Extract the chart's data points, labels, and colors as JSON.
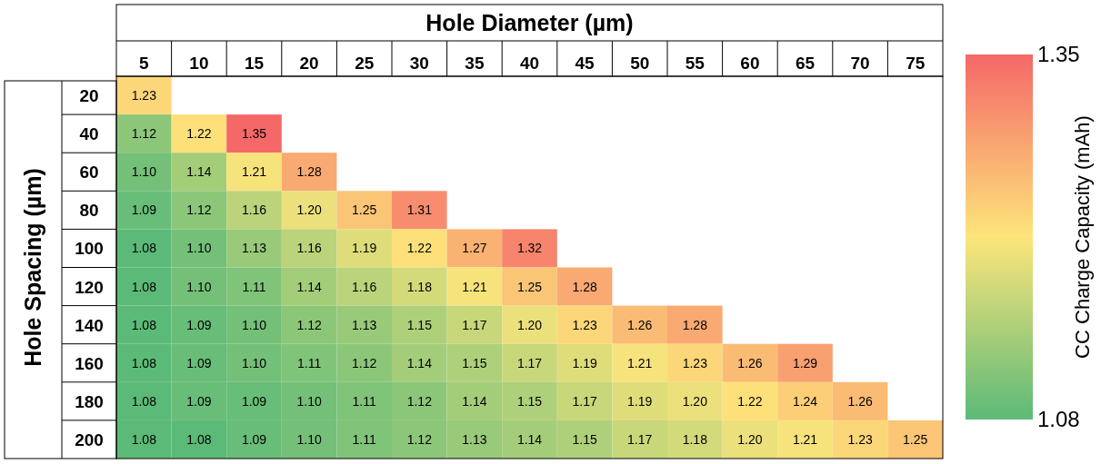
{
  "chart_data": {
    "type": "heatmap",
    "xlabel": "Hole Diameter (µm)",
    "ylabel": "Hole Spacing (µm)",
    "clabel": "CC Charge Capacity (mAh)",
    "categories": [
      "5",
      "10",
      "15",
      "20",
      "25",
      "30",
      "35",
      "40",
      "45",
      "50",
      "55",
      "60",
      "65",
      "70",
      "75"
    ],
    "y_categories": [
      "20",
      "40",
      "60",
      "80",
      "100",
      "120",
      "140",
      "160",
      "180",
      "200"
    ],
    "cells": [
      [
        1.23,
        null,
        null,
        null,
        null,
        null,
        null,
        null,
        null,
        null,
        null,
        null,
        null,
        null,
        null
      ],
      [
        1.12,
        1.22,
        1.35,
        null,
        null,
        null,
        null,
        null,
        null,
        null,
        null,
        null,
        null,
        null,
        null
      ],
      [
        1.1,
        1.14,
        1.21,
        1.28,
        null,
        null,
        null,
        null,
        null,
        null,
        null,
        null,
        null,
        null,
        null
      ],
      [
        1.09,
        1.12,
        1.16,
        1.2,
        1.25,
        1.31,
        null,
        null,
        null,
        null,
        null,
        null,
        null,
        null,
        null
      ],
      [
        1.08,
        1.1,
        1.13,
        1.16,
        1.19,
        1.22,
        1.27,
        1.32,
        null,
        null,
        null,
        null,
        null,
        null,
        null
      ],
      [
        1.08,
        1.1,
        1.11,
        1.14,
        1.16,
        1.18,
        1.21,
        1.25,
        1.28,
        null,
        null,
        null,
        null,
        null,
        null
      ],
      [
        1.08,
        1.09,
        1.1,
        1.12,
        1.13,
        1.15,
        1.17,
        1.2,
        1.23,
        1.26,
        1.28,
        null,
        null,
        null,
        null
      ],
      [
        1.08,
        1.09,
        1.1,
        1.11,
        1.12,
        1.14,
        1.15,
        1.17,
        1.19,
        1.21,
        1.23,
        1.26,
        1.29,
        null,
        null
      ],
      [
        1.08,
        1.09,
        1.09,
        1.1,
        1.11,
        1.12,
        1.14,
        1.15,
        1.17,
        1.19,
        1.2,
        1.22,
        1.24,
        1.26,
        null
      ],
      [
        1.08,
        1.08,
        1.09,
        1.1,
        1.11,
        1.12,
        1.13,
        1.14,
        1.15,
        1.17,
        1.18,
        1.2,
        1.21,
        1.23,
        1.25
      ]
    ],
    "cell_labels": [
      [
        "1.23",
        null,
        null,
        null,
        null,
        null,
        null,
        null,
        null,
        null,
        null,
        null,
        null,
        null,
        null
      ],
      [
        "1.12",
        "1.22",
        "1.35",
        null,
        null,
        null,
        null,
        null,
        null,
        null,
        null,
        null,
        null,
        null,
        null
      ],
      [
        "1.10",
        "1.14",
        "1.21",
        "1.28",
        null,
        null,
        null,
        null,
        null,
        null,
        null,
        null,
        null,
        null,
        null
      ],
      [
        "1.09",
        "1.12",
        "1.16",
        "1.20",
        "1.25",
        "1.31",
        null,
        null,
        null,
        null,
        null,
        null,
        null,
        null,
        null
      ],
      [
        "1.08",
        "1.10",
        "1.13",
        "1.16",
        "1.19",
        "1.22",
        "1.27",
        "1.32",
        null,
        null,
        null,
        null,
        null,
        null,
        null
      ],
      [
        "1.08",
        "1.10",
        "1.11",
        "1.14",
        "1.16",
        "1.18",
        "1.21",
        "1.25",
        "1.28",
        null,
        null,
        null,
        null,
        null,
        null
      ],
      [
        "1.08",
        "1.09",
        "1.10",
        "1.12",
        "1.13",
        "1.15",
        "1.17",
        "1.20",
        "1.23",
        "1.26",
        "1.28",
        null,
        null,
        null,
        null
      ],
      [
        "1.08",
        "1.09",
        "1.10",
        "1.11",
        "1.12",
        "1.14",
        "1.15",
        "1.17",
        "1.19",
        "1.21",
        "1.23",
        "1.26",
        "1.29",
        null,
        null
      ],
      [
        "1.08",
        "1.09",
        "1.09",
        "1.10",
        "1.11",
        "1.12",
        "1.14",
        "1.15",
        "1.17",
        "1.19",
        "1.20",
        "1.22",
        "1.24",
        "1.26",
        null
      ],
      [
        "1.08",
        "1.08",
        "1.09",
        "1.10",
        "1.11",
        "1.12",
        "1.13",
        "1.14",
        "1.15",
        "1.17",
        "1.18",
        "1.20",
        "1.21",
        "1.23",
        "1.25"
      ]
    ],
    "colors": [
      "#5cba78",
      "#fde57b",
      "#f56868"
    ],
    "clim": [
      1.08,
      1.35
    ],
    "cticks": [
      1.08,
      1.35
    ],
    "data_labels": true
  }
}
